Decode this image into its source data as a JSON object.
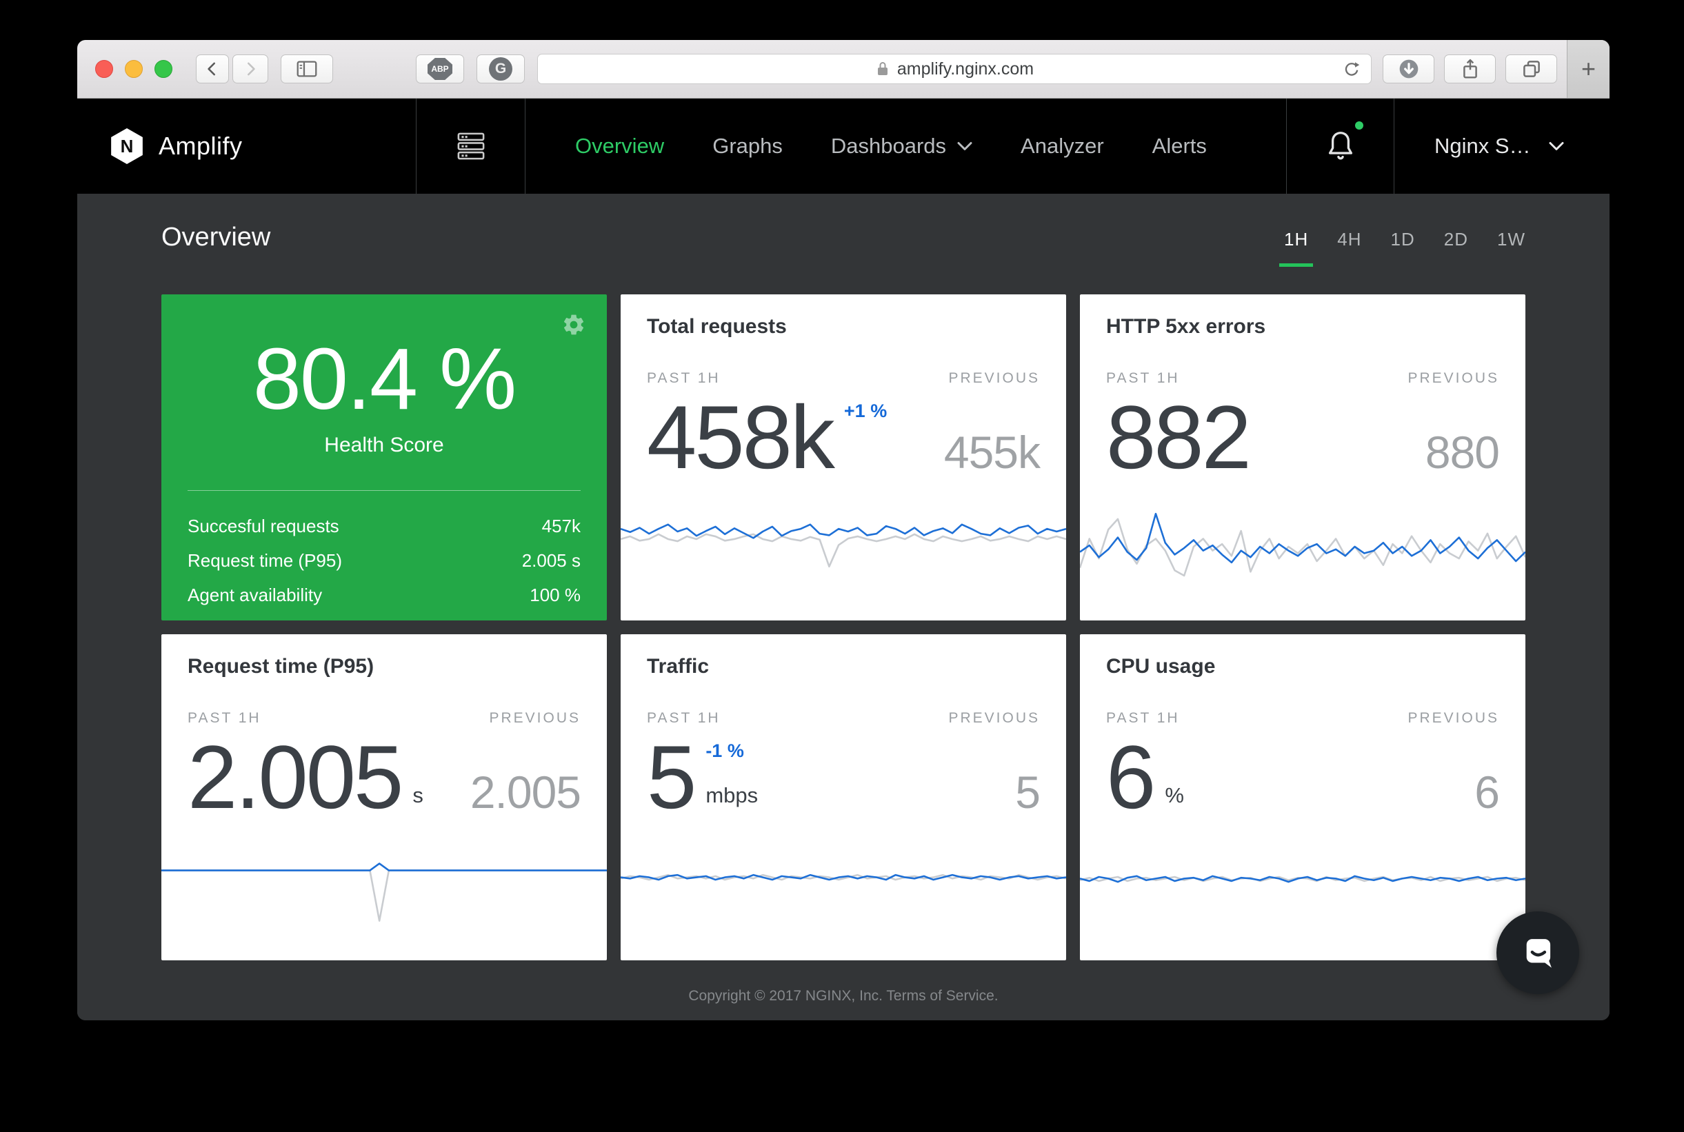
{
  "colors": {
    "accent_green": "#23a847",
    "nav_active_green": "#2ecc66",
    "underline_green": "#24c35a",
    "line_blue": "#1d6fd6",
    "line_gray": "#c9ccd0",
    "delta_blue": "#1569d8"
  },
  "browser": {
    "url": "amplify.nginx.com",
    "new_tab_label": "+",
    "extension_badge": "ABP",
    "extension_letter": "G"
  },
  "icons": {
    "toolbar": [
      "close-traffic-light",
      "minimize-traffic-light",
      "zoom-traffic-light",
      "back-icon",
      "forward-icon",
      "sidebar-icon",
      "adblock-icon",
      "ghostery-icon",
      "lock-icon",
      "reload-icon",
      "download-icon",
      "share-icon",
      "tabs-icon",
      "new-tab-plus"
    ],
    "nav": [
      "nginx-logo",
      "server-rack-icon",
      "chevron-down-icon",
      "bell-icon",
      "notification-dot"
    ],
    "cards": [
      "gear-icon"
    ],
    "misc": [
      "chat-bubble-icon"
    ]
  },
  "nav": {
    "brand": "Amplify",
    "brand_letter": "N",
    "items": [
      {
        "label": "Overview",
        "active": true
      },
      {
        "label": "Graphs",
        "active": false
      },
      {
        "label": "Dashboards",
        "active": false,
        "has_dropdown": true
      },
      {
        "label": "Analyzer",
        "active": false
      },
      {
        "label": "Alerts",
        "active": false
      }
    ],
    "account": "Nginx S…"
  },
  "page": {
    "title": "Overview",
    "time_ranges": [
      "1H",
      "4H",
      "1D",
      "2D",
      "1W"
    ],
    "active_range": "1H",
    "footer": "Copyright © 2017 NGINX, Inc. Terms of Service."
  },
  "labels": {
    "past": "PAST 1H",
    "previous": "PREVIOUS"
  },
  "health": {
    "score": "80.4 %",
    "label": "Health Score",
    "rows": [
      {
        "label": "Succesful requests",
        "value": "457k"
      },
      {
        "label": "Request time (P95)",
        "value": "2.005 s"
      },
      {
        "label": "Agent availability",
        "value": "100 %"
      }
    ]
  },
  "cards": {
    "total_requests": {
      "title": "Total requests",
      "value": "458k",
      "delta": "+1 %",
      "previous": "455k"
    },
    "http_5xx": {
      "title": "HTTP 5xx errors",
      "value": "882",
      "previous": "880"
    },
    "request_time": {
      "title": "Request time (P95)",
      "value": "2.005",
      "unit": "s",
      "previous": "2.005"
    },
    "traffic": {
      "title": "Traffic",
      "value": "5",
      "delta": "-1 %",
      "unit": "mbps",
      "previous": "5"
    },
    "cpu": {
      "title": "CPU usage",
      "value": "6",
      "unit": "%",
      "previous": "6"
    }
  },
  "chart_data": {
    "total_requests": {
      "type": "line",
      "x": "time, past 1h",
      "ylim": [
        440,
        462
      ],
      "unit": "k requests",
      "series": [
        {
          "name": "current",
          "color": "line_blue",
          "values": [
            457,
            456.4,
            457.2,
            456.1,
            457,
            457.8,
            456.5,
            457.1,
            455.7,
            456.6,
            457.4,
            456,
            457.1,
            456.2,
            455.3,
            456.5,
            457.4,
            455.7,
            456.6,
            457,
            457.8,
            456.1,
            455.8,
            457,
            456.5,
            457.2,
            455.8,
            456.1,
            457.5,
            457,
            456.1,
            457.2,
            455.8,
            456.6,
            457.1,
            456.2,
            457.8,
            457,
            456.1,
            455.8,
            457.1,
            456.2,
            457.2,
            457.6,
            456.1,
            457,
            456.5,
            457
          ]
        },
        {
          "name": "previous",
          "color": "line_gray",
          "values": [
            455.1,
            455.6,
            454.8,
            455.1,
            456,
            455.1,
            454.7,
            455.6,
            455.1,
            456,
            455.6,
            454.8,
            455.1,
            455.6,
            456,
            455.1,
            454.7,
            455.6,
            455.1,
            454.8,
            455.5,
            455,
            450,
            454,
            455.2,
            455.6,
            455.1,
            454.7,
            455.1,
            455.6,
            455.1,
            456,
            455.1,
            454.7,
            455.6,
            455.1,
            454.7,
            455.1,
            455.6,
            454.8,
            455.1,
            455.6,
            455.1,
            454.7,
            455.6,
            455.1,
            455.6,
            455.1
          ]
        }
      ]
    },
    "http_5xx": {
      "type": "line",
      "x": "time, past 1h",
      "ylim": [
        824,
        914
      ],
      "unit": "errors",
      "series": [
        {
          "name": "current",
          "color": "line_blue",
          "values": [
            876,
            881,
            872,
            878,
            887,
            876,
            870,
            879,
            905,
            883,
            874,
            879,
            885,
            877,
            881,
            874,
            868,
            877,
            872,
            880,
            875,
            882,
            877,
            873,
            879,
            882,
            875,
            878,
            873,
            880,
            875,
            877,
            883,
            875,
            880,
            873,
            877,
            885,
            875,
            880,
            887,
            877,
            871,
            879,
            885,
            877,
            869,
            876
          ]
        },
        {
          "name": "previous",
          "color": "line_gray",
          "values": [
            864,
            886,
            871,
            893,
            901,
            878,
            867,
            881,
            886,
            877,
            862,
            858,
            880,
            886,
            877,
            882,
            873,
            892,
            861,
            877,
            886,
            871,
            880,
            875,
            882,
            869,
            877,
            886,
            873,
            880,
            871,
            877,
            866,
            882,
            875,
            888,
            877,
            868,
            882,
            875,
            871,
            884,
            877,
            890,
            871,
            880,
            888,
            872
          ]
        }
      ]
    },
    "request_time": {
      "type": "line",
      "x": "time, past 1h",
      "ylim": [
        1.55,
        2.15
      ],
      "unit": "s",
      "series": [
        {
          "name": "current",
          "color": "line_blue",
          "values": [
            2.005,
            2.005,
            2.005,
            2.005,
            2.005,
            2.005,
            2.005,
            2.005,
            2.005,
            2.005,
            2.005,
            2.005,
            2.005,
            2.005,
            2.005,
            2.005,
            2.005,
            2.005,
            2.005,
            2.005,
            2.005,
            2.005,
            2.005,
            2.04,
            2.005,
            2.005,
            2.005,
            2.005,
            2.005,
            2.005,
            2.005,
            2.005,
            2.005,
            2.005,
            2.005,
            2.005,
            2.005,
            2.005,
            2.005,
            2.005,
            2.005,
            2.005,
            2.005,
            2.005,
            2.005,
            2.005,
            2.005,
            2.005
          ]
        },
        {
          "name": "previous",
          "color": "line_gray",
          "values": [
            2.005,
            2.005,
            2.005,
            2.005,
            2.005,
            2.005,
            2.005,
            2.005,
            2.005,
            2.005,
            2.005,
            2.005,
            2.005,
            2.005,
            2.005,
            2.005,
            2.005,
            2.005,
            2.005,
            2.005,
            2.005,
            2.005,
            2.005,
            1.75,
            2.005,
            2.005,
            2.005,
            2.005,
            2.005,
            2.005,
            2.005,
            2.005,
            2.005,
            2.005,
            2.005,
            2.005,
            2.005,
            2.005,
            2.005,
            2.005,
            2.005,
            2.005,
            2.005,
            2.005,
            2.005,
            2.005,
            2.005,
            2.005
          ]
        }
      ]
    },
    "traffic": {
      "type": "line",
      "x": "time, past 1h",
      "ylim": [
        4.3,
        5.3
      ],
      "unit": "mbps",
      "series": [
        {
          "name": "current",
          "color": "line_blue",
          "values": [
            5,
            4.99,
            5.01,
            5,
            4.98,
            5.01,
            5.02,
            4.99,
            5,
            5.01,
            4.98,
            5,
            5.01,
            4.99,
            5.02,
            5,
            4.98,
            5.01,
            5,
            4.99,
            5.02,
            5,
            4.98,
            5,
            5.01,
            4.99,
            5.01,
            5,
            4.98,
            5.02,
            5,
            4.99,
            5.01,
            4.98,
            5,
            5.02,
            5,
            4.99,
            5.01,
            5,
            4.98,
            5,
            5.01,
            4.99,
            5,
            5.01,
            4.99,
            5
          ]
        },
        {
          "name": "previous",
          "color": "line_gray",
          "values": [
            4.99,
            5.01,
            5,
            4.98,
            5,
            5.02,
            4.99,
            5,
            5.01,
            4.99,
            5.01,
            4.98,
            5,
            5.01,
            4.99,
            5.02,
            5,
            4.98,
            5.01,
            5,
            4.99,
            5.01,
            5,
            4.98,
            5,
            5.02,
            4.99,
            5,
            5.01,
            4.98,
            5,
            5.01,
            4.99,
            5,
            5.02,
            4.99,
            5.01,
            5,
            4.98,
            5.01,
            5,
            4.99,
            5.02,
            5,
            4.98,
            5,
            5.01,
            4.99
          ]
        }
      ]
    },
    "cpu": {
      "type": "line",
      "x": "time, past 1h",
      "ylim": [
        5.0,
        6.45
      ],
      "unit": "%",
      "series": [
        {
          "name": "current",
          "color": "line_blue",
          "values": [
            6,
            5.97,
            6.02,
            6,
            5.96,
            6.01,
            6.03,
            5.98,
            6,
            6.02,
            5.97,
            6,
            6.01,
            5.98,
            6.03,
            6,
            5.97,
            6.01,
            6,
            5.98,
            6.02,
            6,
            5.96,
            6,
            6.02,
            5.98,
            6.01,
            6,
            5.97,
            6.03,
            6,
            5.98,
            6.01,
            5.97,
            6,
            6.02,
            6,
            5.98,
            6.01,
            6,
            5.97,
            6,
            6.02,
            5.98,
            6,
            6.01,
            5.98,
            6
          ]
        },
        {
          "name": "previous",
          "color": "line_gray",
          "values": [
            5.98,
            6.01,
            5.97,
            6,
            6.02,
            5.97,
            6,
            6.01,
            5.98,
            6,
            6.02,
            5.98,
            6.01,
            5.97,
            6,
            6.02,
            5.98,
            6,
            6.01,
            5.97,
            6,
            6.02,
            5.98,
            6.01,
            6,
            5.97,
            6.02,
            5.98,
            6,
            6.01,
            5.97,
            6,
            6.02,
            5.98,
            6,
            6.01,
            5.98,
            6.02,
            5.97,
            6,
            6.01,
            5.98,
            6,
            6.02,
            5.97,
            6,
            6.01,
            5.98
          ]
        }
      ]
    }
  }
}
